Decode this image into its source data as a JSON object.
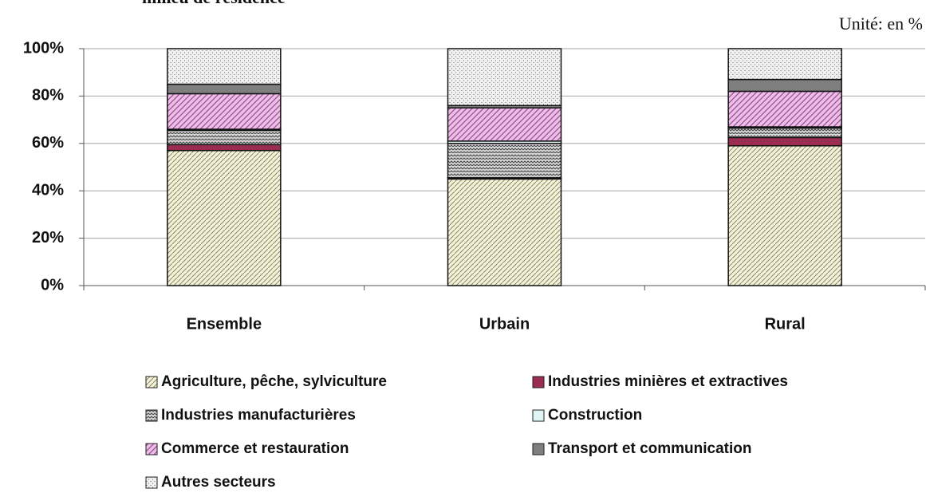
{
  "chart_data": {
    "type": "stacked_bar",
    "title": "milieu de résidence",
    "annotation": "Unité: en %",
    "categories": [
      "Ensemble",
      "Urbain",
      "Rural"
    ],
    "ylim": [
      0,
      100
    ],
    "yticks": [
      {
        "value": 0,
        "label": "0%"
      },
      {
        "value": 20,
        "label": "20%"
      },
      {
        "value": 40,
        "label": "40%"
      },
      {
        "value": 60,
        "label": "60%"
      },
      {
        "value": 80,
        "label": "80%"
      },
      {
        "value": 100,
        "label": "100%"
      }
    ],
    "grid": true,
    "legend": "bottom",
    "series": [
      {
        "name": "Agriculture, pêche, sylviculture",
        "color": "#f4f1dc",
        "values": [
          57,
          45,
          59
        ]
      },
      {
        "name": "Industries minières et extractives",
        "color": "#9b2d52",
        "values": [
          2.5,
          0.5,
          3.5
        ]
      },
      {
        "name": "Industries manufacturières",
        "color": "#d9d9d9",
        "values": [
          6,
          14.5,
          4
        ]
      },
      {
        "name": "Construction",
        "color": "#dff4f4",
        "values": [
          0.5,
          1,
          0.5
        ]
      },
      {
        "name": "Commerce et restauration",
        "color": "#ecbfe6",
        "values": [
          15,
          14,
          15
        ]
      },
      {
        "name": "Transport et communication",
        "color": "#7f7f7f",
        "values": [
          4,
          1,
          5
        ]
      },
      {
        "name": "Autres secteurs",
        "color": "#f0f0f0",
        "values": [
          15,
          24,
          13
        ]
      }
    ]
  }
}
